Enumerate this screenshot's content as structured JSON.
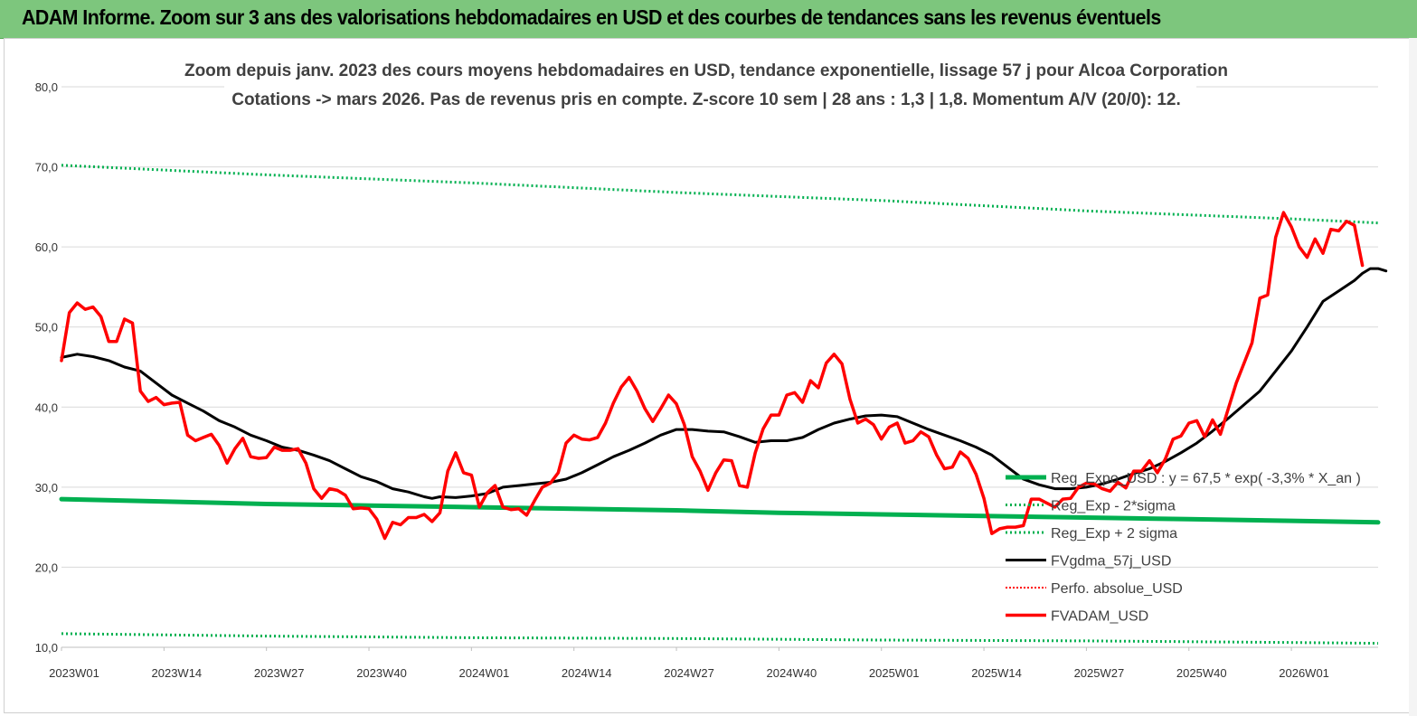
{
  "banner": {
    "title": "ADAM Informe. Zoom sur 3 ans des valorisations hebdomadaires en USD et des courbes de tendances sans les revenus éventuels"
  },
  "colors": {
    "banner_bg": "#7dc67d",
    "reg_expo": "#00b050",
    "sigma": "#00b050",
    "fvgdma": "#000000",
    "perfo": "#ff0000",
    "fvadam": "#ff0000"
  },
  "chart_data": {
    "type": "line",
    "title": [
      "Zoom depuis janv. 2023 des cours moyens hebdomadaires en USD, tendance exponentielle, lissage 57 j pour Alcoa Corporation",
      "Cotations -> mars 2026. Pas de revenus pris en compte. Z-score 10 sem  | 28 ans : 1,3  | 1,8. Momentum A/V (20/0): 12."
    ],
    "xlabel": "",
    "ylabel": "",
    "ylim": [
      10,
      80
    ],
    "yticks": [
      "10,0",
      "20,0",
      "30,0",
      "40,0",
      "50,0",
      "60,0",
      "70,0",
      "80,0"
    ],
    "x_range": [
      0,
      167
    ],
    "xticks": [
      {
        "label": "2023W01",
        "x": 0
      },
      {
        "label": "2023W14",
        "x": 13
      },
      {
        "label": "2023W27",
        "x": 26
      },
      {
        "label": "2023W40",
        "x": 39
      },
      {
        "label": "2024W01",
        "x": 52
      },
      {
        "label": "2024W14",
        "x": 65
      },
      {
        "label": "2024W27",
        "x": 78
      },
      {
        "label": "2024W40",
        "x": 91
      },
      {
        "label": "2025W01",
        "x": 104
      },
      {
        "label": "2025W14",
        "x": 117
      },
      {
        "label": "2025W27",
        "x": 130
      },
      {
        "label": "2025W40",
        "x": 143
      },
      {
        "label": "2026W01",
        "x": 156
      }
    ],
    "grid": true,
    "legend_position": "bottom-right",
    "series": [
      {
        "name": "Reg_Expo_USD : y = 67,5 * exp( -3,3% *  X_an )",
        "style": "thick",
        "points": [
          [
            0,
            28.5
          ],
          [
            13,
            28.2
          ],
          [
            26,
            27.9
          ],
          [
            39,
            27.7
          ],
          [
            52,
            27.5
          ],
          [
            65,
            27.3
          ],
          [
            78,
            27.1
          ],
          [
            91,
            26.8
          ],
          [
            104,
            26.6
          ],
          [
            117,
            26.4
          ],
          [
            130,
            26.2
          ],
          [
            143,
            26.0
          ],
          [
            156,
            25.8
          ],
          [
            167,
            25.6
          ]
        ]
      },
      {
        "name": "Reg_Exp - 2*sigma",
        "style": "dotted",
        "points": [
          [
            0,
            11.7
          ],
          [
            26,
            11.4
          ],
          [
            52,
            11.2
          ],
          [
            78,
            11.1
          ],
          [
            104,
            10.9
          ],
          [
            130,
            10.8
          ],
          [
            156,
            10.6
          ],
          [
            167,
            10.5
          ]
        ]
      },
      {
        "name": "Reg_Exp + 2 sigma",
        "style": "dotted",
        "points": [
          [
            0,
            70.2
          ],
          [
            26,
            69.0
          ],
          [
            52,
            68.0
          ],
          [
            78,
            66.8
          ],
          [
            104,
            65.8
          ],
          [
            130,
            64.5
          ],
          [
            156,
            63.5
          ],
          [
            167,
            63.0
          ]
        ]
      },
      {
        "name": "FVgdma_57j_USD",
        "style": "solid",
        "points": [
          [
            0,
            46.2
          ],
          [
            2,
            46.6
          ],
          [
            4,
            46.3
          ],
          [
            6,
            45.8
          ],
          [
            8,
            45.0
          ],
          [
            10,
            44.5
          ],
          [
            12,
            43.0
          ],
          [
            14,
            41.5
          ],
          [
            16,
            40.5
          ],
          [
            18,
            39.5
          ],
          [
            20,
            38.3
          ],
          [
            22,
            37.5
          ],
          [
            24,
            36.5
          ],
          [
            26,
            35.8
          ],
          [
            28,
            35.0
          ],
          [
            30,
            34.6
          ],
          [
            32,
            34.0
          ],
          [
            34,
            33.3
          ],
          [
            36,
            32.3
          ],
          [
            38,
            31.3
          ],
          [
            40,
            30.7
          ],
          [
            42,
            29.8
          ],
          [
            44,
            29.4
          ],
          [
            46,
            28.8
          ],
          [
            47,
            28.6
          ],
          [
            48,
            28.8
          ],
          [
            50,
            28.7
          ],
          [
            52,
            28.9
          ],
          [
            54,
            29.2
          ],
          [
            56,
            30.0
          ],
          [
            58,
            30.2
          ],
          [
            60,
            30.4
          ],
          [
            62,
            30.6
          ],
          [
            64,
            31.0
          ],
          [
            66,
            31.8
          ],
          [
            68,
            32.8
          ],
          [
            70,
            33.8
          ],
          [
            72,
            34.6
          ],
          [
            74,
            35.5
          ],
          [
            76,
            36.5
          ],
          [
            78,
            37.2
          ],
          [
            80,
            37.2
          ],
          [
            82,
            37.0
          ],
          [
            84,
            36.9
          ],
          [
            86,
            36.3
          ],
          [
            88,
            35.6
          ],
          [
            90,
            35.8
          ],
          [
            92,
            35.8
          ],
          [
            94,
            36.2
          ],
          [
            96,
            37.2
          ],
          [
            98,
            38.0
          ],
          [
            100,
            38.5
          ],
          [
            102,
            38.9
          ],
          [
            104,
            39.0
          ],
          [
            106,
            38.8
          ],
          [
            108,
            38.0
          ],
          [
            110,
            37.2
          ],
          [
            112,
            36.5
          ],
          [
            114,
            35.8
          ],
          [
            116,
            35.0
          ],
          [
            118,
            34.0
          ],
          [
            120,
            32.5
          ],
          [
            122,
            31.0
          ],
          [
            124,
            30.3
          ],
          [
            126,
            29.8
          ],
          [
            128,
            29.8
          ],
          [
            130,
            30.0
          ],
          [
            132,
            30.4
          ],
          [
            134,
            31.0
          ],
          [
            136,
            31.7
          ],
          [
            138,
            32.3
          ],
          [
            140,
            33.2
          ],
          [
            142,
            34.3
          ],
          [
            144,
            35.5
          ],
          [
            146,
            37.0
          ],
          [
            148,
            38.6
          ],
          [
            150,
            40.3
          ],
          [
            152,
            42.0
          ],
          [
            154,
            44.5
          ],
          [
            156,
            47.0
          ],
          [
            158,
            50.0
          ],
          [
            160,
            53.2
          ],
          [
            162,
            54.5
          ],
          [
            164,
            55.8
          ],
          [
            165,
            56.7
          ],
          [
            166,
            57.3
          ],
          [
            167,
            57.3
          ],
          [
            168,
            57.0
          ]
        ]
      },
      {
        "name": "Perfo. absolue_USD",
        "style": "dotted-red",
        "points": []
      },
      {
        "name": "FVADAM_USD",
        "style": "solid-thick",
        "points": [
          [
            0,
            45.8
          ],
          [
            1,
            51.8
          ],
          [
            2,
            53.0
          ],
          [
            3,
            52.2
          ],
          [
            4,
            52.5
          ],
          [
            5,
            51.3
          ],
          [
            6,
            48.2
          ],
          [
            7,
            48.2
          ],
          [
            8,
            51.0
          ],
          [
            9,
            50.5
          ],
          [
            10,
            42.0
          ],
          [
            11,
            40.7
          ],
          [
            12,
            41.2
          ],
          [
            13,
            40.3
          ],
          [
            14,
            40.5
          ],
          [
            15,
            40.6
          ],
          [
            16,
            36.5
          ],
          [
            17,
            35.8
          ],
          [
            18,
            36.2
          ],
          [
            19,
            36.6
          ],
          [
            20,
            35.2
          ],
          [
            21,
            33.0
          ],
          [
            22,
            34.8
          ],
          [
            23,
            36.1
          ],
          [
            24,
            33.8
          ],
          [
            25,
            33.6
          ],
          [
            26,
            33.7
          ],
          [
            27,
            35.0
          ],
          [
            28,
            34.6
          ],
          [
            29,
            34.6
          ],
          [
            30,
            34.8
          ],
          [
            31,
            33.0
          ],
          [
            32,
            29.8
          ],
          [
            33,
            28.6
          ],
          [
            34,
            29.8
          ],
          [
            35,
            29.6
          ],
          [
            36,
            29.0
          ],
          [
            37,
            27.3
          ],
          [
            38,
            27.4
          ],
          [
            39,
            27.3
          ],
          [
            40,
            26.0
          ],
          [
            41,
            23.6
          ],
          [
            42,
            25.6
          ],
          [
            43,
            25.3
          ],
          [
            44,
            26.2
          ],
          [
            45,
            26.2
          ],
          [
            46,
            26.6
          ],
          [
            47,
            25.7
          ],
          [
            48,
            26.8
          ],
          [
            49,
            32.0
          ],
          [
            50,
            34.3
          ],
          [
            51,
            31.8
          ],
          [
            52,
            31.5
          ],
          [
            53,
            27.5
          ],
          [
            54,
            29.3
          ],
          [
            55,
            30.2
          ],
          [
            56,
            27.5
          ],
          [
            57,
            27.2
          ],
          [
            58,
            27.3
          ],
          [
            59,
            26.5
          ],
          [
            60,
            28.3
          ],
          [
            61,
            30.0
          ],
          [
            62,
            30.5
          ],
          [
            63,
            31.8
          ],
          [
            64,
            35.5
          ],
          [
            65,
            36.5
          ],
          [
            66,
            36.0
          ],
          [
            67,
            35.9
          ],
          [
            68,
            36.2
          ],
          [
            69,
            38.0
          ],
          [
            70,
            40.5
          ],
          [
            71,
            42.5
          ],
          [
            72,
            43.7
          ],
          [
            73,
            42.0
          ],
          [
            74,
            39.8
          ],
          [
            75,
            38.2
          ],
          [
            76,
            39.8
          ],
          [
            77,
            41.5
          ],
          [
            78,
            40.4
          ],
          [
            79,
            37.8
          ],
          [
            80,
            33.8
          ],
          [
            81,
            32.0
          ],
          [
            82,
            29.6
          ],
          [
            83,
            31.8
          ],
          [
            84,
            33.4
          ],
          [
            85,
            33.3
          ],
          [
            86,
            30.2
          ],
          [
            87,
            30.0
          ],
          [
            88,
            34.3
          ],
          [
            89,
            37.3
          ],
          [
            90,
            39.0
          ],
          [
            91,
            39.0
          ],
          [
            92,
            41.5
          ],
          [
            93,
            41.8
          ],
          [
            94,
            40.6
          ],
          [
            95,
            43.3
          ],
          [
            96,
            42.4
          ],
          [
            97,
            45.5
          ],
          [
            98,
            46.6
          ],
          [
            99,
            45.4
          ],
          [
            100,
            41.0
          ],
          [
            101,
            38.0
          ],
          [
            102,
            38.5
          ],
          [
            103,
            37.8
          ],
          [
            104,
            36.0
          ],
          [
            105,
            37.5
          ],
          [
            106,
            38.0
          ],
          [
            107,
            35.5
          ],
          [
            108,
            35.8
          ],
          [
            109,
            36.9
          ],
          [
            110,
            36.3
          ],
          [
            111,
            34.0
          ],
          [
            112,
            32.3
          ],
          [
            113,
            32.5
          ],
          [
            114,
            34.4
          ],
          [
            115,
            33.6
          ],
          [
            116,
            31.6
          ],
          [
            117,
            28.6
          ],
          [
            118,
            24.2
          ],
          [
            119,
            24.8
          ],
          [
            120,
            25.0
          ],
          [
            121,
            25.0
          ],
          [
            122,
            25.2
          ],
          [
            123,
            28.5
          ],
          [
            124,
            28.5
          ],
          [
            125,
            28.0
          ],
          [
            126,
            27.5
          ],
          [
            127,
            28.5
          ],
          [
            128,
            28.6
          ],
          [
            129,
            30.0
          ],
          [
            130,
            30.5
          ],
          [
            131,
            30.4
          ],
          [
            132,
            29.8
          ],
          [
            133,
            29.5
          ],
          [
            134,
            30.6
          ],
          [
            135,
            29.9
          ],
          [
            136,
            32.0
          ],
          [
            137,
            32.0
          ],
          [
            138,
            33.3
          ],
          [
            139,
            31.8
          ],
          [
            140,
            33.5
          ],
          [
            141,
            36.0
          ],
          [
            142,
            36.4
          ],
          [
            143,
            38.0
          ],
          [
            144,
            38.3
          ],
          [
            145,
            36.3
          ],
          [
            146,
            38.4
          ],
          [
            147,
            36.6
          ],
          [
            148,
            39.8
          ],
          [
            149,
            43.0
          ],
          [
            150,
            45.5
          ],
          [
            151,
            48.0
          ],
          [
            152,
            53.6
          ],
          [
            153,
            54.0
          ],
          [
            154,
            61.2
          ],
          [
            155,
            64.3
          ],
          [
            156,
            62.5
          ],
          [
            157,
            60.0
          ],
          [
            158,
            58.7
          ],
          [
            159,
            61.0
          ],
          [
            160,
            59.2
          ],
          [
            161,
            62.2
          ],
          [
            162,
            62.0
          ],
          [
            163,
            63.2
          ],
          [
            164,
            62.7
          ],
          [
            165,
            57.7
          ]
        ]
      }
    ]
  }
}
